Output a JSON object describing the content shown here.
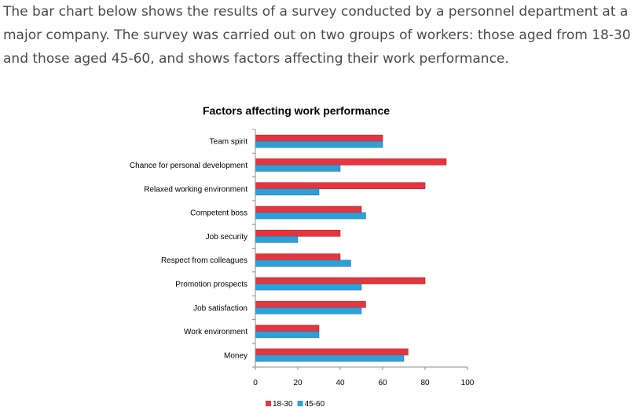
{
  "intro_text": "The bar chart below shows the results of a survey conducted by a personnel department at a major company. The survey was carried out on two groups of workers: those aged from 18-30 and those aged 45-60, and shows factors affecting their work performance.",
  "chart_data": {
    "type": "bar",
    "orientation": "horizontal",
    "title": "Factors affecting work performance",
    "xlabel": "",
    "ylabel": "",
    "categories": [
      "Team spirit",
      "Chance for personal development",
      "Relaxed working environment",
      "Competent boss",
      "Job security",
      "Respect from colleagues",
      "Promotion prospects",
      "Job satisfaction",
      "Work environment",
      "Money"
    ],
    "series": [
      {
        "name": "18-30",
        "color": "#e8343c",
        "values": [
          60,
          90,
          80,
          50,
          40,
          40,
          80,
          52,
          30,
          72
        ]
      },
      {
        "name": "45-60",
        "color": "#2f9fd6",
        "values": [
          60,
          40,
          30,
          52,
          20,
          45,
          50,
          50,
          30,
          70
        ]
      }
    ],
    "xlim": [
      0,
      100
    ],
    "xticks": [
      0,
      20,
      40,
      60,
      80,
      100
    ],
    "grid": false,
    "legend_position": "bottom"
  }
}
